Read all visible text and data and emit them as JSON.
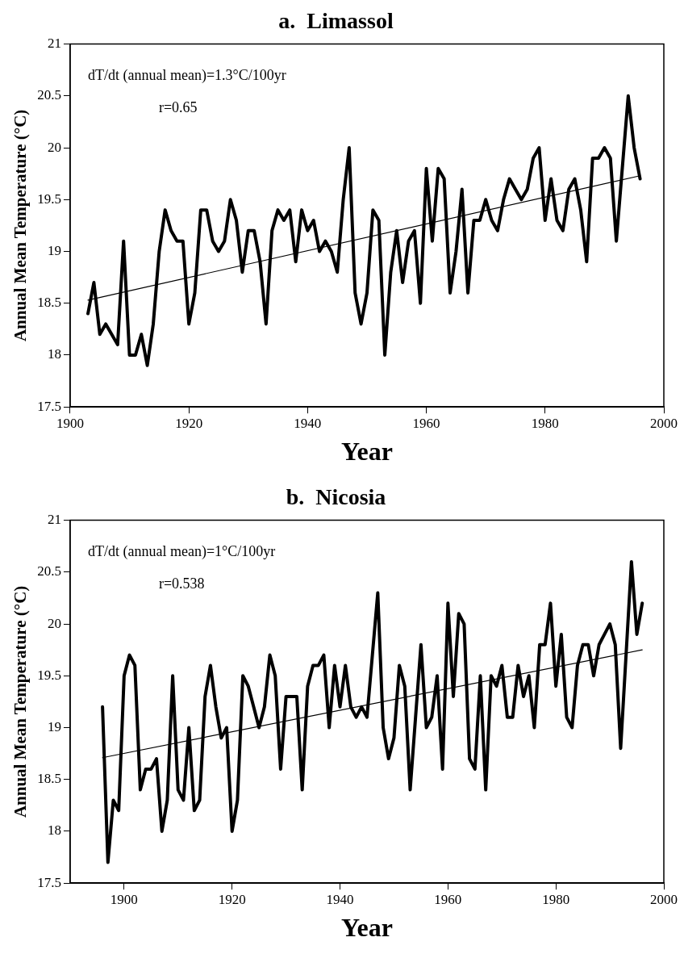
{
  "chart_data": [
    {
      "type": "line",
      "title": "a.  Limassol",
      "xlabel": "Year",
      "ylabel": "Annual Mean Temperature (°C)",
      "annotations": [
        "dT/dt (annual mean)=1.3°C/100yr",
        "r=0.65"
      ],
      "xlim": [
        1900,
        2000
      ],
      "xticks": [
        1900,
        1920,
        1940,
        1960,
        1980,
        2000
      ],
      "ylim": [
        17.5,
        21
      ],
      "yticks": [
        17.5,
        18,
        18.5,
        19,
        19.5,
        20,
        20.5,
        21
      ],
      "marker": "none",
      "series": [
        {
          "color": "#000000",
          "x": [
            1903,
            1904,
            1905,
            1906,
            1907,
            1908,
            1909,
            1910,
            1911,
            1912,
            1913,
            1914,
            1915,
            1916,
            1917,
            1918,
            1919,
            1920,
            1921,
            1922,
            1923,
            1924,
            1925,
            1926,
            1927,
            1928,
            1929,
            1930,
            1931,
            1932,
            1933,
            1934,
            1935,
            1936,
            1937,
            1938,
            1939,
            1940,
            1941,
            1942,
            1943,
            1944,
            1945,
            1946,
            1947,
            1948,
            1949,
            1950,
            1951,
            1952,
            1953,
            1954,
            1955,
            1956,
            1957,
            1958,
            1959,
            1960,
            1961,
            1962,
            1963,
            1964,
            1965,
            1966,
            1967,
            1968,
            1969,
            1970,
            1971,
            1972,
            1973,
            1974,
            1975,
            1976,
            1977,
            1978,
            1979,
            1980,
            1981,
            1982,
            1983,
            1984,
            1985,
            1986,
            1987,
            1988,
            1989,
            1990,
            1991,
            1992,
            1993,
            1994,
            1995,
            1996
          ],
          "values": [
            18.4,
            18.7,
            18.2,
            18.3,
            18.2,
            18.1,
            19.1,
            18.0,
            18.0,
            18.2,
            17.9,
            18.3,
            19.0,
            19.4,
            19.2,
            19.1,
            19.1,
            18.3,
            18.6,
            19.4,
            19.4,
            19.1,
            19.0,
            19.1,
            19.5,
            19.3,
            18.8,
            19.2,
            19.2,
            18.9,
            18.3,
            19.2,
            19.4,
            19.3,
            19.4,
            18.9,
            19.4,
            19.2,
            19.3,
            19.0,
            19.1,
            19.0,
            18.8,
            19.5,
            20.0,
            18.6,
            18.3,
            18.6,
            19.4,
            19.3,
            18.0,
            18.8,
            19.2,
            18.7,
            19.1,
            19.2,
            18.5,
            19.8,
            19.1,
            19.8,
            19.7,
            18.6,
            19.0,
            19.6,
            18.6,
            19.3,
            19.3,
            19.5,
            19.3,
            19.2,
            19.5,
            19.7,
            19.6,
            19.5,
            19.6,
            19.9,
            20.0,
            19.3,
            19.7,
            19.3,
            19.2,
            19.6,
            19.7,
            19.4,
            18.9,
            19.9,
            19.9,
            20.0,
            19.9,
            19.1,
            19.8,
            20.5,
            20.0,
            19.7
          ]
        },
        {
          "type": "line",
          "color": "#000000",
          "x": [
            1903,
            1996
          ],
          "values": [
            18.53,
            19.73
          ]
        }
      ]
    },
    {
      "type": "line",
      "title": "b.  Nicosia",
      "xlabel": "Year",
      "ylabel": "Annual Mean Temperature (°C)",
      "annotations": [
        "dT/dt (annual mean)=1°C/100yr",
        "r=0.538"
      ],
      "xlim": [
        1890,
        2000
      ],
      "xticks": [
        1900,
        1920,
        1940,
        1960,
        1980,
        2000
      ],
      "ylim": [
        17.5,
        21
      ],
      "yticks": [
        17.5,
        18,
        18.5,
        19,
        19.5,
        20,
        20.5,
        21
      ],
      "marker": "none",
      "series": [
        {
          "color": "#000000",
          "x": [
            1896,
            1897,
            1898,
            1899,
            1900,
            1901,
            1902,
            1903,
            1904,
            1905,
            1906,
            1907,
            1908,
            1909,
            1910,
            1911,
            1912,
            1913,
            1914,
            1915,
            1916,
            1917,
            1918,
            1919,
            1920,
            1921,
            1922,
            1923,
            1924,
            1925,
            1926,
            1927,
            1928,
            1929,
            1930,
            1931,
            1932,
            1933,
            1934,
            1935,
            1936,
            1937,
            1938,
            1939,
            1940,
            1941,
            1942,
            1943,
            1944,
            1945,
            1946,
            1947,
            1948,
            1949,
            1950,
            1951,
            1952,
            1953,
            1954,
            1955,
            1956,
            1957,
            1958,
            1959,
            1960,
            1961,
            1962,
            1963,
            1964,
            1965,
            1966,
            1967,
            1968,
            1969,
            1970,
            1971,
            1972,
            1973,
            1974,
            1975,
            1976,
            1977,
            1978,
            1979,
            1980,
            1981,
            1982,
            1983,
            1984,
            1985,
            1986,
            1987,
            1988,
            1989,
            1990,
            1991,
            1992,
            1993,
            1994,
            1995,
            1996
          ],
          "values": [
            19.2,
            17.7,
            18.3,
            18.2,
            19.5,
            19.7,
            19.6,
            18.4,
            18.6,
            18.6,
            18.7,
            18.0,
            18.3,
            19.5,
            18.4,
            18.3,
            19.0,
            18.2,
            18.3,
            19.3,
            19.6,
            19.2,
            18.9,
            19.0,
            18.0,
            18.3,
            19.5,
            19.4,
            19.2,
            19.0,
            19.2,
            19.7,
            19.5,
            18.6,
            19.3,
            19.3,
            19.3,
            18.4,
            19.4,
            19.6,
            19.6,
            19.7,
            19.0,
            19.6,
            19.2,
            19.6,
            19.2,
            19.1,
            19.2,
            19.1,
            19.7,
            20.3,
            19.0,
            18.7,
            18.9,
            19.6,
            19.4,
            18.4,
            19.1,
            19.8,
            19.0,
            19.1,
            19.5,
            18.6,
            20.2,
            19.3,
            20.1,
            20.0,
            18.7,
            18.6,
            19.5,
            18.4,
            19.5,
            19.4,
            19.6,
            19.1,
            19.1,
            19.6,
            19.3,
            19.5,
            19.0,
            19.8,
            19.8,
            20.2,
            19.4,
            19.9,
            19.1,
            19.0,
            19.6,
            19.8,
            19.8,
            19.5,
            19.8,
            19.9,
            20.0,
            19.8,
            18.8,
            19.7,
            20.6,
            19.9,
            20.2
          ]
        },
        {
          "type": "line",
          "color": "#000000",
          "x": [
            1896,
            1996
          ],
          "values": [
            18.71,
            19.75
          ]
        }
      ]
    }
  ]
}
